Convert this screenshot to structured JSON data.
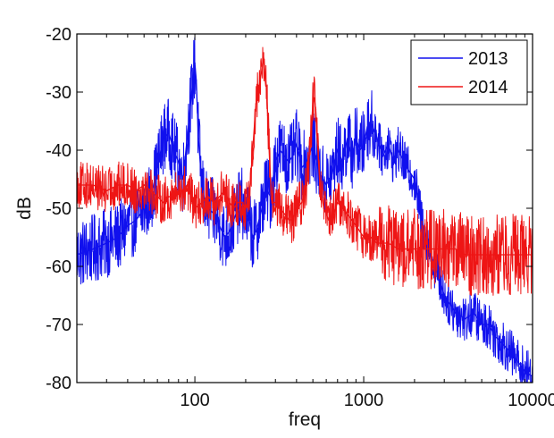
{
  "chart_data": {
    "type": "line",
    "title": "",
    "xlabel": "freq",
    "ylabel": "dB",
    "x_scale": "log",
    "xlim": [
      20,
      10000
    ],
    "ylim": [
      -80,
      -20
    ],
    "x_ticks": [
      100,
      1000,
      10000
    ],
    "x_tick_labels": [
      "100",
      "1000",
      "10000"
    ],
    "y_ticks": [
      -80,
      -70,
      -60,
      -50,
      -40,
      -30,
      -20
    ],
    "y_tick_labels": [
      "-80",
      "-70",
      "-60",
      "-50",
      "-40",
      "-30",
      "-20"
    ],
    "grid": false,
    "legend_position": "top-right",
    "series": [
      {
        "name": "2013",
        "color": "#1010ee",
        "x": [
          20,
          25,
          30,
          35,
          40,
          45,
          50,
          55,
          60,
          65,
          70,
          75,
          80,
          85,
          90,
          95,
          100,
          102,
          105,
          110,
          115,
          120,
          130,
          140,
          150,
          160,
          170,
          180,
          190,
          200,
          210,
          220,
          230,
          240,
          250,
          260,
          270,
          280,
          290,
          300,
          320,
          340,
          360,
          380,
          400,
          430,
          460,
          500,
          520,
          550,
          600,
          650,
          700,
          750,
          800,
          850,
          900,
          950,
          1000,
          1050,
          1100,
          1200,
          1300,
          1400,
          1500,
          1600,
          1800,
          2000,
          2200,
          2500,
          2800,
          3000,
          3500,
          4000,
          4500,
          5000,
          5500,
          6000,
          7000,
          8000,
          9000,
          10000
        ],
        "y": [
          -58,
          -57,
          -56,
          -55,
          -53,
          -52,
          -50,
          -48,
          -43,
          -38,
          -37,
          -40,
          -42,
          -45,
          -38,
          -31,
          -25,
          -28,
          -38,
          -46,
          -49,
          -50,
          -51,
          -53,
          -55,
          -54,
          -52,
          -50,
          -49,
          -51,
          -52,
          -55,
          -54,
          -52,
          -50,
          -47,
          -47,
          -48,
          -45,
          -42,
          -40,
          -41,
          -42,
          -41,
          -39,
          -43,
          -42,
          -39,
          -41,
          -44,
          -46,
          -44,
          -40,
          -42,
          -38,
          -41,
          -38,
          -40,
          -39,
          -36,
          -35,
          -38,
          -41,
          -39,
          -42,
          -40,
          -43,
          -45,
          -52,
          -58,
          -62,
          -65,
          -68,
          -69,
          -68,
          -70,
          -70,
          -72,
          -74,
          -76,
          -78,
          -79
        ]
      },
      {
        "name": "2014",
        "color": "#ee1515",
        "x": [
          20,
          25,
          30,
          35,
          40,
          45,
          50,
          55,
          60,
          65,
          70,
          75,
          80,
          85,
          90,
          95,
          100,
          110,
          120,
          130,
          140,
          150,
          160,
          170,
          180,
          190,
          200,
          210,
          220,
          230,
          240,
          250,
          255,
          260,
          265,
          270,
          280,
          290,
          300,
          320,
          340,
          360,
          380,
          400,
          430,
          460,
          480,
          500,
          510,
          520,
          530,
          550,
          580,
          620,
          660,
          700,
          750,
          800,
          850,
          900,
          950,
          1000,
          1100,
          1200,
          1400,
          1600,
          1800,
          2000,
          2500,
          3000,
          3500,
          4000,
          5000,
          6000,
          7000,
          8000,
          10000
        ],
        "y": [
          -46,
          -46,
          -47,
          -46,
          -46,
          -47,
          -46,
          -47,
          -48,
          -49,
          -48,
          -48,
          -47,
          -47,
          -46,
          -48,
          -50,
          -49,
          -48,
          -49,
          -48,
          -47,
          -49,
          -50,
          -49,
          -49,
          -50,
          -48,
          -40,
          -32,
          -29,
          -26,
          -24,
          -27,
          -29,
          -34,
          -45,
          -49,
          -49,
          -50,
          -51,
          -52,
          -52,
          -50,
          -49,
          -46,
          -40,
          -32,
          -31,
          -33,
          -38,
          -46,
          -50,
          -52,
          -51,
          -49,
          -50,
          -51,
          -52,
          -53,
          -54,
          -55,
          -55,
          -56,
          -56,
          -57,
          -57,
          -57,
          -57,
          -57,
          -57,
          -58,
          -58,
          -58,
          -58,
          -58,
          -58
        ]
      }
    ]
  }
}
